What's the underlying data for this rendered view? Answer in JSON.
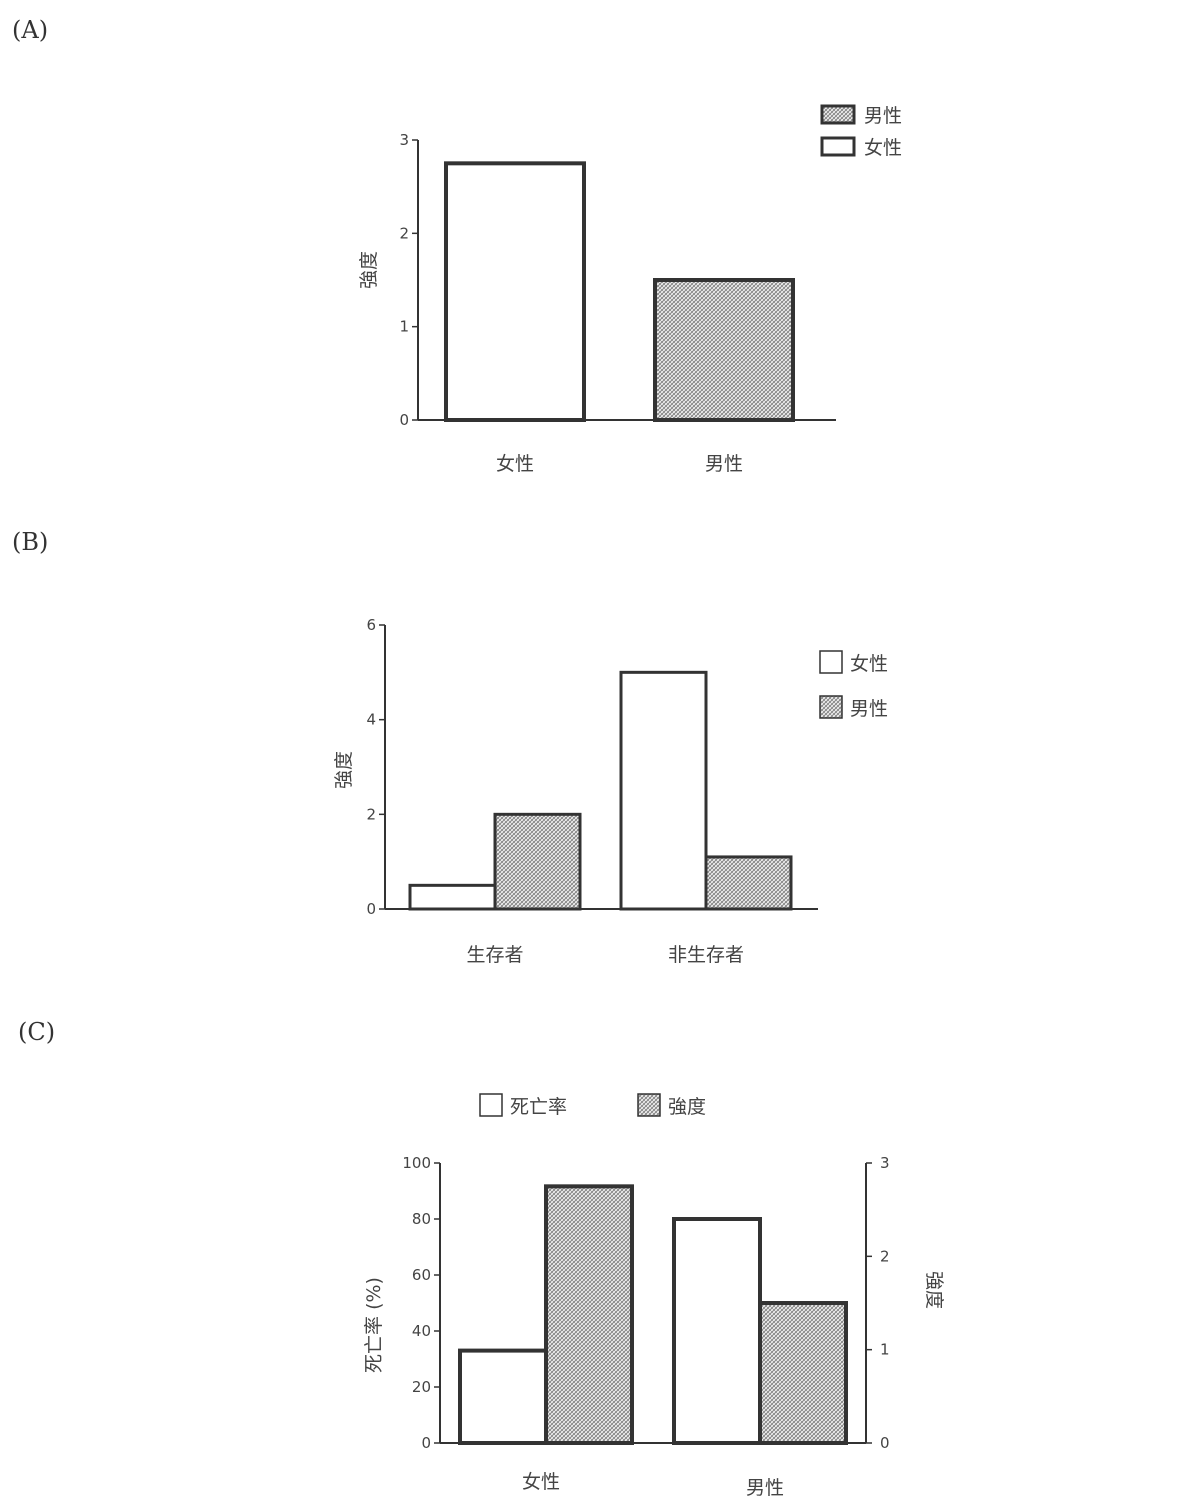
{
  "panels": {
    "a": {
      "label": "(A)"
    },
    "b": {
      "label": "(B)"
    },
    "c": {
      "label": "(C)"
    }
  },
  "colors": {
    "outline": "#333333",
    "hatch": "#9a9a9a",
    "fill_open": "#ffffff"
  },
  "chart_data": [
    {
      "type": "bar",
      "id": "a",
      "categories": [
        "女性",
        "男性"
      ],
      "series": [
        {
          "name": "男性",
          "values": [
            null,
            1.5
          ]
        },
        {
          "name": "女性",
          "values": [
            2.75,
            null
          ]
        }
      ],
      "legend": [
        "男性",
        "女性"
      ],
      "ylabel": "強度",
      "ylim": [
        0,
        3
      ],
      "yticks": [
        "0",
        "1",
        "2",
        "3"
      ],
      "legend_position": "top-right",
      "grid": false
    },
    {
      "type": "bar",
      "id": "b",
      "categories": [
        "生存者",
        "非生存者"
      ],
      "series": [
        {
          "name": "女性",
          "values": [
            0.5,
            5.0
          ]
        },
        {
          "name": "男性",
          "values": [
            2.0,
            1.1
          ]
        }
      ],
      "ylabel": "強度",
      "ylim": [
        0,
        6
      ],
      "yticks": [
        "0",
        "2",
        "4",
        "6"
      ],
      "legend_position": "top-right",
      "grid": false
    },
    {
      "type": "bar",
      "id": "c",
      "categories": [
        "女性",
        "男性"
      ],
      "series": [
        {
          "name": "死亡率",
          "axis": "left",
          "values": [
            33,
            80
          ]
        },
        {
          "name": "強度",
          "axis": "right",
          "values": [
            2.75,
            1.5
          ]
        }
      ],
      "ylabel": "死亡率 (%)",
      "ylim": [
        0,
        100
      ],
      "yticks": [
        "0",
        "20",
        "40",
        "60",
        "80",
        "100"
      ],
      "ylabel_right": "強度",
      "ylim_right": [
        0,
        3
      ],
      "yticks_right": [
        "0",
        "1",
        "2",
        "3"
      ],
      "legend_position": "top",
      "grid": false
    }
  ]
}
